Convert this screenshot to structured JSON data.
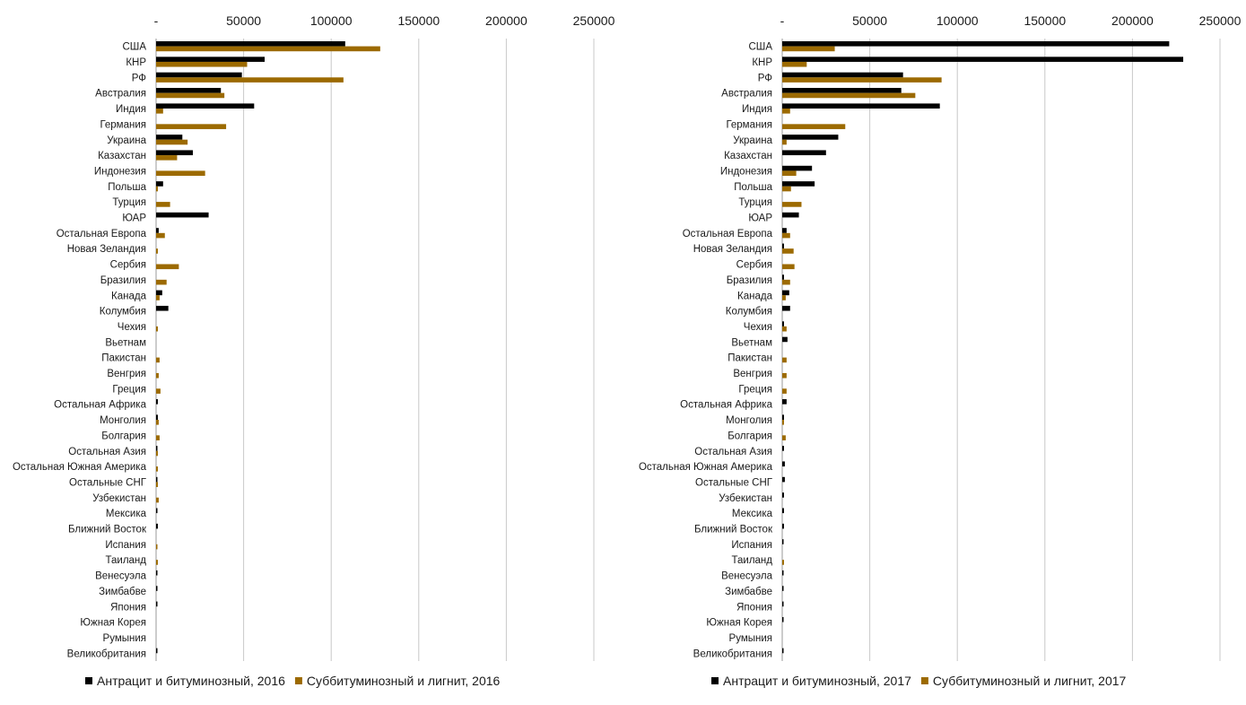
{
  "colors": {
    "series_a": "#000000",
    "series_b": "#9c6a00",
    "grid": "#c8c8c8"
  },
  "chart_data": [
    {
      "type": "bar",
      "orientation": "horizontal",
      "x_tick_labels": [
        "-",
        "50000",
        "100000",
        "150000",
        "200000",
        "250000"
      ],
      "xlim": [
        0,
        250000
      ],
      "grid": true,
      "legend_position": "bottom",
      "categories": [
        "США",
        "КНР",
        "РФ",
        "Австралия",
        "Индия",
        "Германия",
        "Украина",
        "Казахстан",
        "Индонезия",
        "Польша",
        "Турция",
        "ЮАР",
        "Остальная Европа",
        "Новая Зеландия",
        "Сербия",
        "Бразилия",
        "Канада",
        "Колумбия",
        "Чехия",
        "Вьетнам",
        "Пакистан",
        "Венгрия",
        "Греция",
        "Остальная Африка",
        "Монголия",
        "Болгария",
        "Остальная Азия",
        "Остальная Южная Америка",
        "Остальные СНГ",
        "Узбекистан",
        "Мексика",
        "Ближний Восток",
        "Испания",
        "Таиланд",
        "Венесуэла",
        "Зимбабве",
        "Япония",
        "Южная Корея",
        "Румыния",
        "Великобритания"
      ],
      "series": [
        {
          "name": "Антрацит и битуминозный, 2016",
          "color": "#000000",
          "values": [
            108000,
            62000,
            49000,
            37000,
            56000,
            0,
            15000,
            21000,
            0,
            4000,
            0,
            30000,
            1500,
            0,
            0,
            0,
            3500,
            7000,
            0,
            0,
            0,
            0,
            0,
            1000,
            1000,
            0,
            500,
            0,
            500,
            0,
            500,
            1000,
            0,
            0,
            500,
            500,
            300,
            0,
            0,
            300
          ]
        },
        {
          "name": "Суббитуминозный и лигнит, 2016",
          "color": "#9c6a00",
          "values": [
            128000,
            52000,
            107000,
            39000,
            4000,
            40000,
            18000,
            12000,
            28000,
            1000,
            8000,
            0,
            5000,
            1000,
            13000,
            6000,
            2000,
            0,
            1000,
            0,
            2000,
            1500,
            2500,
            0,
            1500,
            2000,
            1000,
            1000,
            1000,
            1500,
            0,
            0,
            500,
            1000,
            0,
            0,
            0,
            0,
            0,
            0
          ]
        }
      ]
    },
    {
      "type": "bar",
      "orientation": "horizontal",
      "x_tick_labels": [
        "-",
        "50000",
        "100000",
        "150000",
        "200000",
        "250000"
      ],
      "xlim": [
        0,
        250000
      ],
      "grid": true,
      "legend_position": "bottom",
      "categories": [
        "США",
        "КНР",
        "РФ",
        "Австралия",
        "Индия",
        "Германия",
        "Украина",
        "Казахстан",
        "Индонезия",
        "Польша",
        "Турция",
        "ЮАР",
        "Остальная Европа",
        "Новая Зеландия",
        "Сербия",
        "Бразилия",
        "Канада",
        "Колумбия",
        "Чехия",
        "Вьетнам",
        "Пакистан",
        "Венгрия",
        "Греция",
        "Остальная Африка",
        "Монголия",
        "Болгария",
        "Остальная Азия",
        "Остальная Южная Америка",
        "Остальные СНГ",
        "Узбекистан",
        "Мексика",
        "Ближний Восток",
        "Испания",
        "Таиланд",
        "Венесуэла",
        "Зимбабве",
        "Япония",
        "Южная Корея",
        "Румыния",
        "Великобритания"
      ],
      "series": [
        {
          "name": "Антрацит и битуминозный, 2017",
          "color": "#000000",
          "values": [
            221000,
            229000,
            69000,
            68000,
            90000,
            0,
            32000,
            25000,
            17000,
            18500,
            0,
            9500,
            2500,
            1000,
            0,
            1000,
            4000,
            4500,
            1000,
            3000,
            0,
            0,
            0,
            2500,
            1000,
            0,
            1000,
            1500,
            1500,
            1000,
            1000,
            1000,
            500,
            0,
            500,
            300,
            300,
            500,
            0,
            300
          ]
        },
        {
          "name": "Суббитуминозный и лигнит, 2017",
          "color": "#9c6a00",
          "values": [
            30000,
            14000,
            91000,
            76000,
            4500,
            36000,
            2500,
            0,
            8000,
            5000,
            11000,
            0,
            4500,
            6500,
            7000,
            4500,
            2000,
            0,
            2500,
            0,
            2500,
            2500,
            2500,
            0,
            1000,
            2000,
            0,
            0,
            0,
            0,
            0,
            0,
            0,
            1000,
            0,
            0,
            0,
            0,
            0,
            0
          ]
        }
      ]
    }
  ]
}
